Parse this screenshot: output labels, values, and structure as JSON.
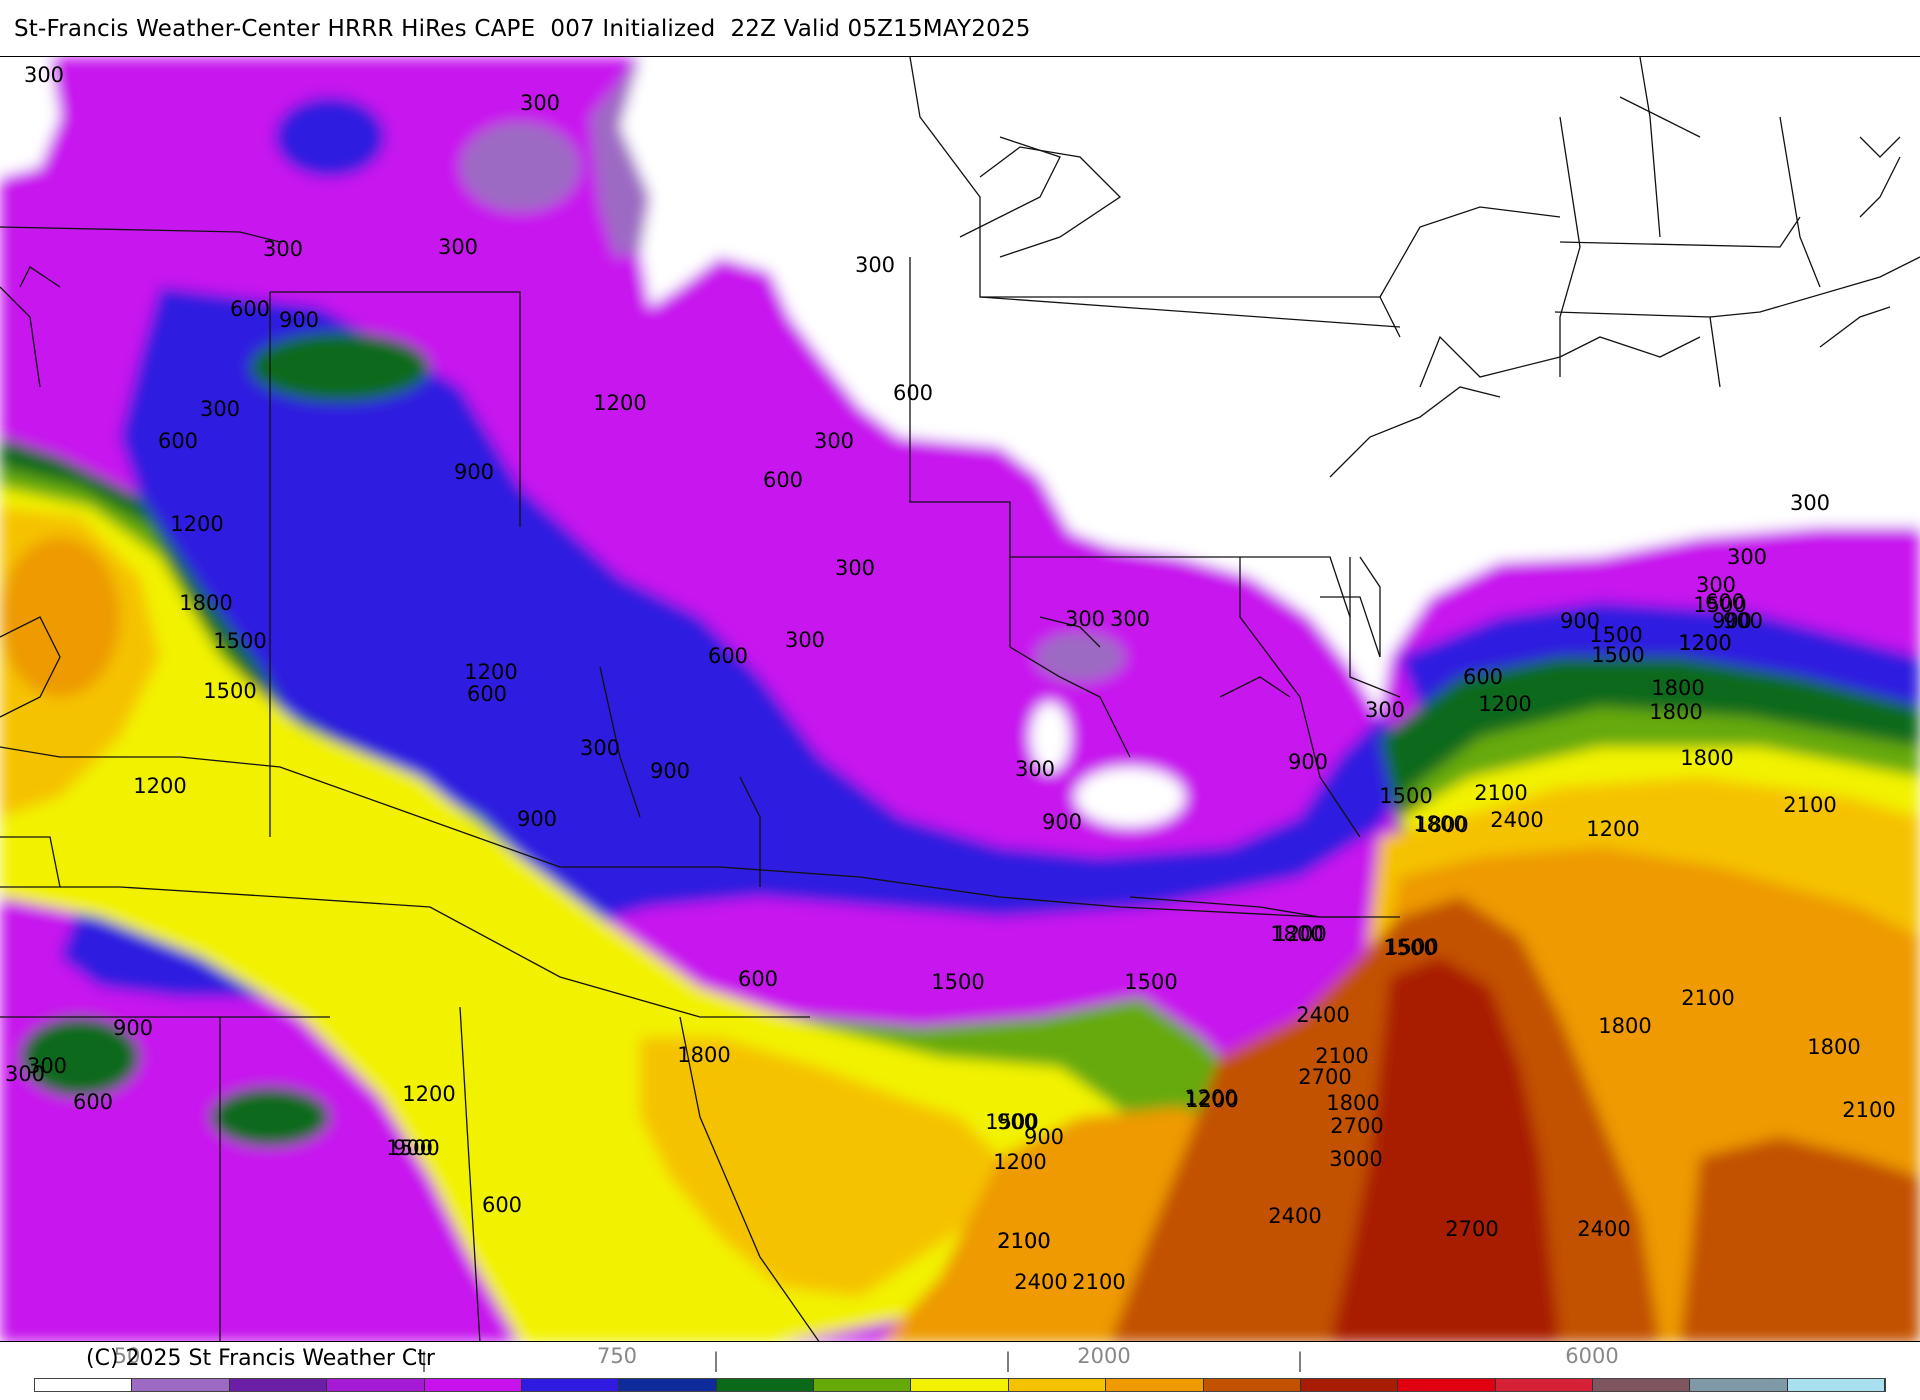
{
  "title": "St-Francis Weather-Center HRRR HiRes CAPE  007 Initialized  22Z Valid 05Z15MAY2025",
  "copyright": "(C) 2025 St Francis Weather Ctr",
  "colorbar_ticks": [
    "50",
    "750",
    "2000",
    "6000"
  ],
  "colorbar_marks": [
    "|",
    "|",
    "|",
    "|"
  ],
  "colorbar_colors": [
    "#ffffff",
    "#9d6ac3",
    "#6b1ea6",
    "#a51ad6",
    "#c712ee",
    "#2f1be0",
    "#0f2a9a",
    "#0a6a1a",
    "#66aa0a",
    "#f2f200",
    "#f5c200",
    "#ee9a00",
    "#c25100",
    "#a81c00",
    "#e00010",
    "#d62035",
    "#7f5660",
    "#7f9aa6",
    "#a8e0f0"
  ],
  "contour_labels": [
    "300",
    "300",
    "300",
    "300",
    "300",
    "600",
    "900",
    "300",
    "600",
    "1200",
    "900",
    "1800",
    "1500",
    "600",
    "300",
    "600",
    "300",
    "300",
    "300",
    "300",
    "300",
    "300",
    "1200",
    "1500",
    "1500",
    "1200",
    "600",
    "600",
    "900",
    "300",
    "900",
    "1200",
    "900",
    "1200",
    "1200",
    "900",
    "900",
    "600",
    "1800",
    "1500",
    "1200",
    "1500",
    "300",
    "600",
    "900",
    "1500",
    "1200",
    "1800",
    "1500",
    "1200",
    "300",
    "300",
    "900",
    "1500",
    "1200",
    "900",
    "1800",
    "1500",
    "1800",
    "1800",
    "2100",
    "2400",
    "1500",
    "1500",
    "2400",
    "2100",
    "2700",
    "1800",
    "2700",
    "3000",
    "2400",
    "2700",
    "2400",
    "2100",
    "2100",
    "2400",
    "2100",
    "1800",
    "1200",
    "900",
    "600",
    "300",
    "600",
    "900",
    "300",
    "900",
    "600",
    "1200",
    "1500",
    "1200",
    "1800",
    "2100",
    "1800",
    "2100",
    "1800",
    "2100",
    "2400"
  ]
}
